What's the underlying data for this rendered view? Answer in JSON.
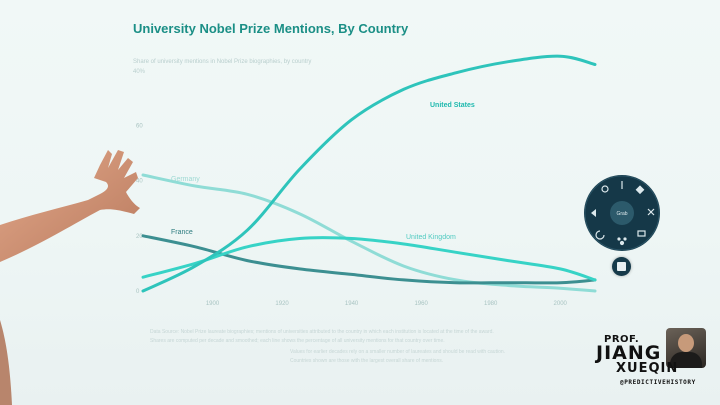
{
  "chart_data": {
    "type": "line",
    "title": "University Nobel Prize Mentions, By Country",
    "subtitle": "",
    "xlabel": "",
    "ylabel": "",
    "x_ticks": [
      "1900",
      "1920",
      "1940",
      "1960",
      "1980",
      "2000"
    ],
    "y_ticks": [
      0,
      20,
      40,
      60
    ],
    "x": [
      1880,
      1895,
      1910,
      1925,
      1940,
      1955,
      1970,
      1985,
      2000,
      2010
    ],
    "ylim": [
      0,
      80
    ],
    "grid": false,
    "legend": "inline labels",
    "series": [
      {
        "name": "United States",
        "color": "#2ec4bb",
        "values": [
          0,
          9,
          22,
          44,
          62,
          73,
          79,
          83,
          85,
          82
        ]
      },
      {
        "name": "Germany",
        "color": "#8fdcd6",
        "values": [
          42,
          38,
          35,
          28,
          18,
          9,
          4,
          2,
          1,
          0
        ]
      },
      {
        "name": "France",
        "color": "#3c8f91",
        "values": [
          20,
          16,
          11,
          8,
          6,
          4,
          3,
          3,
          3,
          4
        ]
      },
      {
        "name": "United Kingdom",
        "color": "#37d3c6",
        "values": [
          5,
          10,
          16,
          19,
          19,
          17,
          14,
          11,
          8,
          4
        ]
      }
    ]
  },
  "overlay": {
    "faint_subtitle": "Share of university mentions in Nobel Prize biographies, by country",
    "faint_ylabel": "40%",
    "footnote_lines": [
      "Data Source: Nobel Prize laureate biographies; mentions of universities attributed to the country in which each institution is located at the time of the award.",
      "Shares are computed per decade and smoothed; each line shows the percentage of all university mentions for that country over time.",
      "Values for earlier decades rely on a smaller number of laureates and should be read with caution.",
      "Countries shown are those with the largest overall share of mentions."
    ],
    "radial_menu_center": "Grab"
  },
  "brand": {
    "prefix": "PROF.",
    "name1": "JIANG",
    "name2": "XUEQIN",
    "handle": "@PREDICTIVEHISTORY"
  }
}
